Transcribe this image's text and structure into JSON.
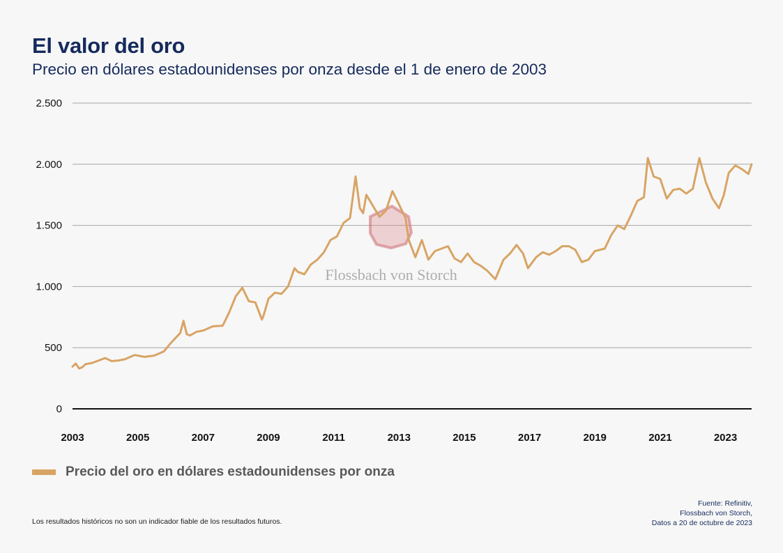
{
  "title": "El valor del oro",
  "subtitle": "Precio en dólares estadounidenses por onza desde el 1 de enero de 2003",
  "watermark": "Flossbach von Storch",
  "legend_label": "Precio del oro en dólares estadounidenses por onza",
  "disclaimer": "Los resultados históricos no son un indicador fiable de los resultados futuros.",
  "source": [
    "Fuente: Refinitiv,",
    "Flossbach von Storch,",
    "Datos a 20 de octubre de 2023"
  ],
  "colors": {
    "series": "#d8a464",
    "grid": "#a6a6a6",
    "axis": "#111111",
    "title": "#152a5c",
    "watermark_logo": "#d9878b"
  },
  "chart_data": {
    "type": "line",
    "title": "El valor del oro",
    "xlabel": "",
    "ylabel": "",
    "xlim": [
      2003.0,
      2023.8
    ],
    "ylim": [
      0,
      2500
    ],
    "yticks": [
      0,
      500,
      1000,
      1500,
      2000,
      2500
    ],
    "ytick_labels": [
      "0",
      "500",
      "1.000",
      "1.500",
      "2.000",
      "2.500"
    ],
    "xticks": [
      2003,
      2005,
      2007,
      2009,
      2011,
      2013,
      2015,
      2017,
      2019,
      2021,
      2023
    ],
    "xtick_labels": [
      "2003",
      "2005",
      "2007",
      "2009",
      "2011",
      "2013",
      "2015",
      "2017",
      "2019",
      "2021",
      "2023"
    ],
    "grid": true,
    "legend_position": "bottom-left",
    "series": [
      {
        "name": "Precio del oro en dólares estadounidenses por onza",
        "x": [
          2003.0,
          2003.1,
          2003.2,
          2003.3,
          2003.4,
          2003.6,
          2003.8,
          2004.0,
          2004.2,
          2004.4,
          2004.6,
          2004.9,
          2005.2,
          2005.5,
          2005.8,
          2006.0,
          2006.3,
          2006.4,
          2006.5,
          2006.6,
          2006.8,
          2007.0,
          2007.3,
          2007.6,
          2007.8,
          2008.0,
          2008.2,
          2008.4,
          2008.6,
          2008.8,
          2008.85,
          2009.0,
          2009.2,
          2009.4,
          2009.6,
          2009.8,
          2009.9,
          2010.1,
          2010.3,
          2010.5,
          2010.7,
          2010.9,
          2011.1,
          2011.3,
          2011.5,
          2011.67,
          2011.8,
          2011.9,
          2012.0,
          2012.2,
          2012.4,
          2012.6,
          2012.8,
          2013.0,
          2013.2,
          2013.3,
          2013.5,
          2013.7,
          2013.9,
          2014.1,
          2014.3,
          2014.5,
          2014.7,
          2014.9,
          2015.1,
          2015.3,
          2015.5,
          2015.7,
          2015.95,
          2016.2,
          2016.4,
          2016.6,
          2016.8,
          2016.95,
          2017.2,
          2017.4,
          2017.6,
          2017.8,
          2018.0,
          2018.2,
          2018.4,
          2018.6,
          2018.8,
          2019.0,
          2019.3,
          2019.5,
          2019.7,
          2019.9,
          2020.1,
          2020.3,
          2020.5,
          2020.62,
          2020.8,
          2021.0,
          2021.2,
          2021.4,
          2021.6,
          2021.8,
          2022.0,
          2022.2,
          2022.4,
          2022.6,
          2022.8,
          2022.95,
          2023.1,
          2023.3,
          2023.5,
          2023.7,
          2023.8
        ],
        "values": [
          345,
          370,
          330,
          340,
          365,
          375,
          395,
          415,
          390,
          395,
          405,
          440,
          425,
          435,
          470,
          535,
          620,
          720,
          610,
          600,
          630,
          640,
          675,
          680,
          790,
          920,
          990,
          880,
          870,
          730,
          760,
          900,
          950,
          940,
          1000,
          1150,
          1120,
          1100,
          1180,
          1220,
          1280,
          1380,
          1410,
          1520,
          1560,
          1900,
          1640,
          1600,
          1750,
          1660,
          1570,
          1620,
          1780,
          1670,
          1560,
          1380,
          1240,
          1380,
          1220,
          1290,
          1310,
          1330,
          1230,
          1200,
          1270,
          1200,
          1170,
          1130,
          1060,
          1220,
          1270,
          1340,
          1270,
          1150,
          1240,
          1280,
          1260,
          1290,
          1330,
          1330,
          1300,
          1200,
          1220,
          1290,
          1310,
          1420,
          1500,
          1470,
          1580,
          1700,
          1730,
          2050,
          1900,
          1880,
          1720,
          1790,
          1800,
          1760,
          1800,
          2050,
          1850,
          1720,
          1640,
          1750,
          1930,
          1990,
          1960,
          1920,
          2000
        ]
      }
    ]
  }
}
